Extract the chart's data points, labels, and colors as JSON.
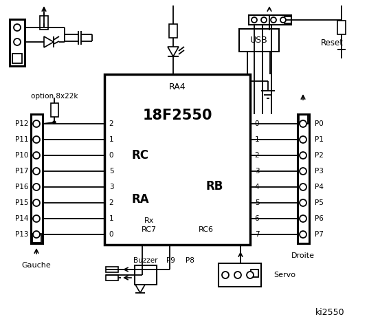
{
  "bg_color": "#ffffff",
  "chip_label": "18F2550",
  "chip_sublabel": "RA4",
  "rc_label": "RC",
  "ra_label": "RA",
  "rb_label": "RB",
  "rc_pins": [
    "2",
    "1",
    "0",
    "5",
    "3",
    "2",
    "1",
    "0"
  ],
  "rb_pins": [
    "0",
    "1",
    "2",
    "3",
    "4",
    "5",
    "6",
    "7"
  ],
  "left_labels": [
    "P12",
    "P11",
    "P10",
    "P17",
    "P16",
    "P15",
    "P14",
    "P13"
  ],
  "right_labels": [
    "P0",
    "P1",
    "P2",
    "P3",
    "P4",
    "P5",
    "P6",
    "P7"
  ],
  "gauche_label": "Gauche",
  "droite_label": "Droite",
  "usb_label": "USB",
  "reset_label": "Reset",
  "option_label": "option 8x22k",
  "buzzer_label": "Buzzer",
  "p9_label": "P9",
  "p8_label": "P8",
  "servo_label": "Servo",
  "rx_label": "Rx",
  "rc7_label": "RC7",
  "rc6_label": "RC6",
  "ki_label": "ki2550"
}
